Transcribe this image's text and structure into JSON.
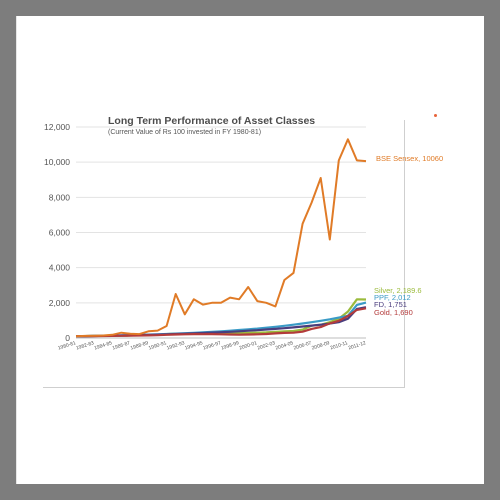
{
  "chart_data": {
    "type": "line",
    "title": "Long Term Performance of Asset Classes",
    "subtitle": "(Current Value of Rs 100 invested in FY 1980-81)",
    "ylim": [
      0,
      12000
    ],
    "yticks": [
      "0",
      "2,000",
      "4,000",
      "6,000",
      "8,000",
      "10,000",
      "12,000"
    ],
    "ytick_values": [
      0,
      2000,
      4000,
      6000,
      8000,
      10000,
      12000
    ],
    "categories": [
      "1980-81",
      "1981-82",
      "1982-83",
      "1983-84",
      "1984-85",
      "1985-86",
      "1986-87",
      "1987-88",
      "1988-89",
      "1989-90",
      "1990-91",
      "1991-92",
      "1992-93",
      "1993-94",
      "1994-95",
      "1995-96",
      "1996-97",
      "1997-98",
      "1998-99",
      "1999-00",
      "2000-01",
      "2001-02",
      "2002-03",
      "2003-04",
      "2004-05",
      "2005-06",
      "2006-07",
      "2007-08",
      "2008-09",
      "2009-10",
      "2010-11",
      "2011-12",
      "2012-13"
    ],
    "xtick_labels": [
      "1980-81",
      "1982-83",
      "1984-85",
      "1986-87",
      "1988-89",
      "1990-91",
      "1992-93",
      "1994-95",
      "1996-97",
      "1998-99",
      "2000-01",
      "2002-03",
      "2004-05",
      "2006-07",
      "2008-09",
      "2010-11",
      "2011-12"
    ],
    "grid": true,
    "series": [
      {
        "name": "BSE Sensex",
        "end_label": "BSE Sensex, 10060",
        "color": "#e07b27",
        "values": [
          100,
          120,
          130,
          140,
          180,
          300,
          240,
          220,
          380,
          420,
          680,
          2500,
          1350,
          2200,
          1900,
          2000,
          2000,
          2300,
          2200,
          2900,
          2100,
          2000,
          1800,
          3300,
          3700,
          6500,
          7700,
          9100,
          5600,
          10100,
          11300,
          10100,
          10060
        ]
      },
      {
        "name": "Silver",
        "end_label": "Silver,  2,189.6",
        "color": "#9bbb3c",
        "values": [
          100,
          110,
          120,
          125,
          130,
          135,
          140,
          160,
          170,
          180,
          220,
          250,
          250,
          260,
          260,
          270,
          270,
          280,
          290,
          290,
          300,
          320,
          350,
          380,
          400,
          480,
          700,
          750,
          900,
          1100,
          1500,
          2200,
          2189.6
        ]
      },
      {
        "name": "PPF",
        "end_label": "PPF, 2,012",
        "color": "#3a9bc6",
        "values": [
          100,
          108,
          117,
          127,
          138,
          150,
          163,
          177,
          193,
          210,
          229,
          250,
          272,
          296,
          322,
          351,
          382,
          416,
          453,
          493,
          537,
          585,
          637,
          694,
          756,
          823,
          896,
          976,
          1063,
          1158,
          1261,
          1880,
          2012
        ]
      },
      {
        "name": "FD",
        "end_label": "FD, 1,751",
        "color": "#4a3d7e",
        "values": [
          100,
          107,
          115,
          124,
          133,
          143,
          154,
          166,
          179,
          193,
          208,
          225,
          243,
          262,
          283,
          305,
          329,
          355,
          383,
          413,
          446,
          481,
          519,
          560,
          604,
          652,
          703,
          758,
          818,
          900,
          1100,
          1650,
          1751
        ]
      },
      {
        "name": "Gold",
        "end_label": "Gold, 1,690",
        "color": "#b33b3b",
        "values": [
          100,
          110,
          105,
          115,
          120,
          125,
          130,
          140,
          150,
          160,
          180,
          200,
          210,
          220,
          215,
          220,
          210,
          200,
          190,
          200,
          210,
          230,
          260,
          290,
          300,
          360,
          520,
          620,
          830,
          980,
          1250,
          1600,
          1690
        ]
      }
    ]
  }
}
